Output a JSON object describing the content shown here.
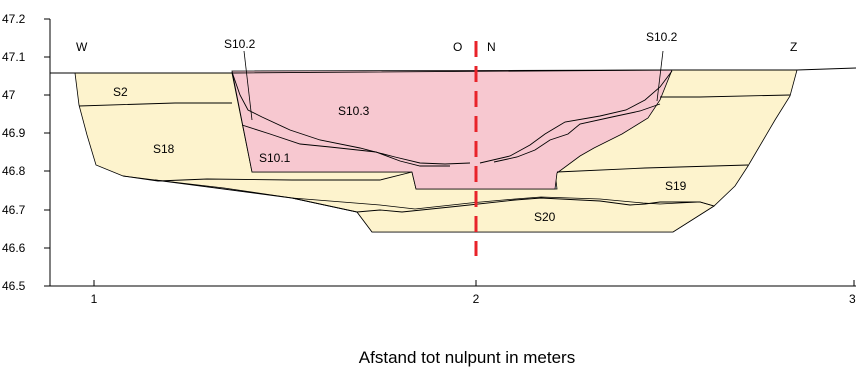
{
  "chart_data": {
    "type": "diagram",
    "xlabel": "Afstand tot nulpunt in meters",
    "x_ticks": [
      "1",
      "2",
      "3"
    ],
    "y_ticks": [
      "47.2",
      "47.1",
      "47",
      "46.9",
      "46.8",
      "46.7",
      "46.6",
      "46.5"
    ],
    "xlim": [
      0.84,
      2.98
    ],
    "ylim": [
      46.5,
      47.2
    ],
    "orientation": {
      "left": "W",
      "right": "Z",
      "center_left": "O",
      "center_right": "N"
    },
    "section_line_color": "#e8232a",
    "fill_colors": {
      "natural_soil": "#fdf3cd",
      "pit_fill": "#f7c8d0"
    },
    "layers": [
      {
        "name": "S2",
        "fill": "natural_soil"
      },
      {
        "name": "S18",
        "fill": "natural_soil"
      },
      {
        "name": "S19",
        "fill": "natural_soil"
      },
      {
        "name": "S20",
        "fill": "natural_soil"
      },
      {
        "name": "S10.1",
        "fill": "pit_fill"
      },
      {
        "name": "S10.2",
        "fill": "pit_fill"
      },
      {
        "name": "S10.3",
        "fill": "pit_fill"
      }
    ],
    "labels": {
      "s10_2_left": "S10.2",
      "s10_2_right": "S10.2",
      "s10_3": "S10.3",
      "s10_1": "S10.1",
      "s2": "S2",
      "s18": "S18",
      "s19": "S19",
      "s20": "S20"
    }
  }
}
